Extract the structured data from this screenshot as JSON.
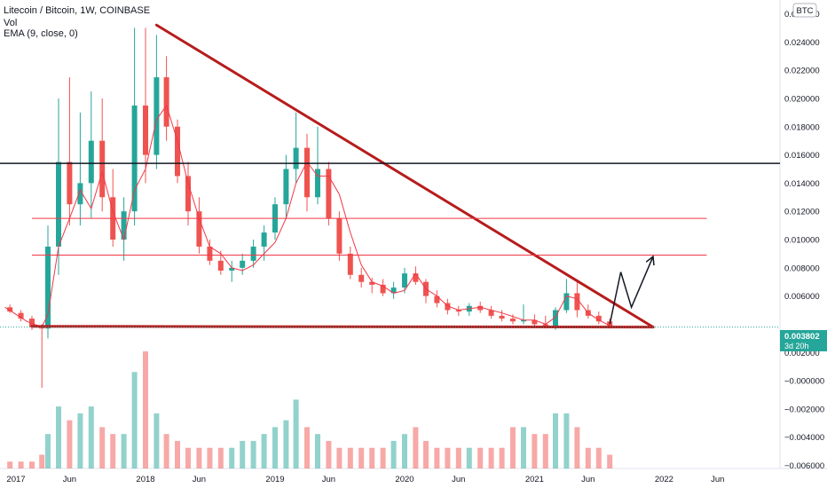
{
  "header": {
    "title": "Litecoin / Bitcoin, 1W, COINBASE",
    "vol_label": "Vol",
    "ema_label": "EMA (9, close, 0)",
    "currency_badge": "BTC"
  },
  "price_badge": {
    "value": "0.003802",
    "countdown": "3d 20h"
  },
  "colors": {
    "up": "#26a69a",
    "down": "#ef5350",
    "ema": "#f23645",
    "trendline": "#b71c1c",
    "resistance": "#131722",
    "level": "#f23645",
    "price_badge": "#26a69a",
    "arrow": "#131722"
  },
  "chart_data": {
    "type": "candlestick",
    "symbol": "Litecoin / Bitcoin",
    "interval": "1W",
    "exchange": "COINBASE",
    "x_ticks": [
      "2017",
      "Jun",
      "2018",
      "Jun",
      "2019",
      "Jun",
      "2020",
      "Jun",
      "2021",
      "Jun",
      "2022",
      "Jun"
    ],
    "x_tick_dates": [
      "2017-01-01",
      "2017-06-01",
      "2018-01-01",
      "2018-06-01",
      "2019-01-01",
      "2019-06-01",
      "2020-01-01",
      "2020-06-01",
      "2021-01-01",
      "2021-06-01",
      "2022-01-01",
      "2022-06-01"
    ],
    "y_ticks": [
      "0.026000",
      "0.024000",
      "0.022000",
      "0.020000",
      "0.018000",
      "0.016000",
      "0.014000",
      "0.012000",
      "0.010000",
      "0.008000",
      "0.006000",
      "0.002000",
      "−0.000000",
      "−0.002000",
      "−0.004000",
      "−0.006000"
    ],
    "y_tick_values": [
      0.026,
      0.024,
      0.022,
      0.02,
      0.018,
      0.016,
      0.014,
      0.012,
      0.01,
      0.008,
      0.006,
      0.002,
      0,
      -0.002,
      -0.004,
      -0.006
    ],
    "ylim": [
      -0.0063,
      0.0285
    ],
    "last_price": 0.003802,
    "series": [
      {
        "name": "EMA (9, close, 0)",
        "type": "line",
        "points": [
          [
            "2016-12-01",
            0.0052
          ],
          [
            "2017-02-01",
            0.0042
          ],
          [
            "2017-03-15",
            0.0038
          ],
          [
            "2017-04-01",
            0.0047
          ],
          [
            "2017-05-01",
            0.0095
          ],
          [
            "2017-06-01",
            0.0115
          ],
          [
            "2017-07-01",
            0.0135
          ],
          [
            "2017-08-01",
            0.0122
          ],
          [
            "2017-09-01",
            0.0148
          ],
          [
            "2017-10-01",
            0.012
          ],
          [
            "2017-11-01",
            0.01
          ],
          [
            "2017-12-01",
            0.0135
          ],
          [
            "2018-01-01",
            0.015
          ],
          [
            "2018-02-01",
            0.0185
          ],
          [
            "2018-03-01",
            0.0195
          ],
          [
            "2018-04-01",
            0.017
          ],
          [
            "2018-05-01",
            0.014
          ],
          [
            "2018-06-01",
            0.0115
          ],
          [
            "2018-07-01",
            0.0095
          ],
          [
            "2018-08-01",
            0.009
          ],
          [
            "2018-09-01",
            0.008
          ],
          [
            "2018-10-01",
            0.0078
          ],
          [
            "2018-11-01",
            0.0082
          ],
          [
            "2018-12-01",
            0.009
          ],
          [
            "2019-01-01",
            0.0098
          ],
          [
            "2019-02-01",
            0.0115
          ],
          [
            "2019-03-01",
            0.014
          ],
          [
            "2019-04-01",
            0.0155
          ],
          [
            "2019-05-01",
            0.0145
          ],
          [
            "2019-06-01",
            0.0145
          ],
          [
            "2019-07-01",
            0.0132
          ],
          [
            "2019-08-01",
            0.0105
          ],
          [
            "2019-09-01",
            0.0082
          ],
          [
            "2019-10-01",
            0.007
          ],
          [
            "2019-11-01",
            0.0067
          ],
          [
            "2019-12-01",
            0.0062
          ],
          [
            "2020-01-01",
            0.0064
          ],
          [
            "2020-02-01",
            0.0076
          ],
          [
            "2020-03-01",
            0.0065
          ],
          [
            "2020-04-01",
            0.006
          ],
          [
            "2020-05-01",
            0.0053
          ],
          [
            "2020-06-01",
            0.005
          ],
          [
            "2020-08-01",
            0.0052
          ],
          [
            "2020-10-01",
            0.0048
          ],
          [
            "2020-12-01",
            0.0043
          ],
          [
            "2021-01-01",
            0.0043
          ],
          [
            "2021-02-01",
            0.004
          ],
          [
            "2021-03-01",
            0.0045
          ],
          [
            "2021-04-01",
            0.006
          ],
          [
            "2021-05-01",
            0.0058
          ],
          [
            "2021-06-01",
            0.0048
          ],
          [
            "2021-07-01",
            0.0043
          ],
          [
            "2021-08-01",
            0.0039
          ]
        ]
      }
    ],
    "ohlc_shape": [
      [
        "2016-12-15",
        0.0052,
        0.0054,
        0.0048,
        0.0049
      ],
      [
        "2017-01-15",
        0.0048,
        0.005,
        0.0042,
        0.0044
      ],
      [
        "2017-02-15",
        0.0044,
        0.0046,
        0.0036,
        0.0038
      ],
      [
        "2017-03-15",
        0.0038,
        0.004,
        -0.0005,
        0.0037
      ],
      [
        "2017-04-01",
        0.0037,
        0.011,
        0.003,
        0.0095
      ],
      [
        "2017-05-01",
        0.0095,
        0.02,
        0.0075,
        0.0155
      ],
      [
        "2017-06-01",
        0.0155,
        0.0215,
        0.011,
        0.0125
      ],
      [
        "2017-07-01",
        0.0125,
        0.019,
        0.011,
        0.014
      ],
      [
        "2017-08-01",
        0.014,
        0.0205,
        0.0115,
        0.017
      ],
      [
        "2017-09-01",
        0.017,
        0.02,
        0.012,
        0.013
      ],
      [
        "2017-10-01",
        0.013,
        0.015,
        0.0095,
        0.01
      ],
      [
        "2017-11-01",
        0.01,
        0.013,
        0.0085,
        0.012
      ],
      [
        "2017-12-01",
        0.012,
        0.025,
        0.011,
        0.0195
      ],
      [
        "2018-01-01",
        0.0195,
        0.025,
        0.014,
        0.016
      ],
      [
        "2018-02-01",
        0.016,
        0.0245,
        0.015,
        0.0215
      ],
      [
        "2018-03-01",
        0.0215,
        0.023,
        0.017,
        0.018
      ],
      [
        "2018-04-01",
        0.018,
        0.0185,
        0.014,
        0.0145
      ],
      [
        "2018-05-01",
        0.0145,
        0.0155,
        0.011,
        0.012
      ],
      [
        "2018-06-01",
        0.012,
        0.013,
        0.009,
        0.0095
      ],
      [
        "2018-07-01",
        0.0095,
        0.01,
        0.0082,
        0.0085
      ],
      [
        "2018-08-01",
        0.0085,
        0.0092,
        0.0075,
        0.0078
      ],
      [
        "2018-09-01",
        0.0078,
        0.0085,
        0.007,
        0.008
      ],
      [
        "2018-10-01",
        0.008,
        0.009,
        0.0075,
        0.0085
      ],
      [
        "2018-11-01",
        0.0085,
        0.01,
        0.008,
        0.0095
      ],
      [
        "2018-12-01",
        0.0095,
        0.011,
        0.0085,
        0.0105
      ],
      [
        "2019-01-01",
        0.0105,
        0.013,
        0.01,
        0.0125
      ],
      [
        "2019-02-01",
        0.0125,
        0.016,
        0.0115,
        0.015
      ],
      [
        "2019-03-01",
        0.015,
        0.019,
        0.014,
        0.0165
      ],
      [
        "2019-04-01",
        0.0165,
        0.0175,
        0.012,
        0.013
      ],
      [
        "2019-05-01",
        0.013,
        0.018,
        0.0125,
        0.015
      ],
      [
        "2019-06-01",
        0.015,
        0.0155,
        0.011,
        0.0115
      ],
      [
        "2019-07-01",
        0.0115,
        0.012,
        0.0085,
        0.009
      ],
      [
        "2019-08-01",
        0.009,
        0.0095,
        0.0072,
        0.0075
      ],
      [
        "2019-09-01",
        0.0075,
        0.008,
        0.0066,
        0.007
      ],
      [
        "2019-10-01",
        0.007,
        0.0073,
        0.0062,
        0.0068
      ],
      [
        "2019-11-01",
        0.0068,
        0.0072,
        0.006,
        0.0062
      ],
      [
        "2019-12-01",
        0.0062,
        0.007,
        0.0058,
        0.0066
      ],
      [
        "2020-01-01",
        0.0066,
        0.008,
        0.0062,
        0.0076
      ],
      [
        "2020-02-01",
        0.0076,
        0.0081,
        0.0068,
        0.007
      ],
      [
        "2020-03-01",
        0.007,
        0.0072,
        0.0055,
        0.006
      ],
      [
        "2020-04-01",
        0.006,
        0.0064,
        0.0052,
        0.0055
      ],
      [
        "2020-05-01",
        0.0055,
        0.0058,
        0.0047,
        0.005
      ],
      [
        "2020-06-01",
        0.005,
        0.0053,
        0.0046,
        0.0049
      ],
      [
        "2020-07-01",
        0.0049,
        0.0055,
        0.0046,
        0.0053
      ],
      [
        "2020-08-01",
        0.0053,
        0.0056,
        0.0048,
        0.005
      ],
      [
        "2020-09-01",
        0.005,
        0.0053,
        0.0044,
        0.0046
      ],
      [
        "2020-10-01",
        0.0046,
        0.005,
        0.0042,
        0.0044
      ],
      [
        "2020-11-01",
        0.0044,
        0.0047,
        0.004,
        0.0042
      ],
      [
        "2020-12-01",
        0.0042,
        0.0054,
        0.004,
        0.0043
      ],
      [
        "2021-01-01",
        0.0043,
        0.0047,
        0.0038,
        0.004
      ],
      [
        "2021-02-01",
        0.004,
        0.0046,
        0.0037,
        0.0038
      ],
      [
        "2021-03-01",
        0.0038,
        0.0052,
        0.0036,
        0.005
      ],
      [
        "2021-04-01",
        0.005,
        0.0072,
        0.0048,
        0.0062
      ],
      [
        "2021-05-01",
        0.0062,
        0.007,
        0.0045,
        0.005
      ],
      [
        "2021-06-01",
        0.005,
        0.0054,
        0.0044,
        0.0046
      ],
      [
        "2021-07-01",
        0.0046,
        0.0049,
        0.004,
        0.0042
      ],
      [
        "2021-08-01",
        0.0042,
        0.0044,
        0.0037,
        0.0038
      ]
    ],
    "volume_shape": [
      1,
      1,
      1,
      2,
      5,
      9,
      7,
      8,
      9,
      6,
      5,
      5,
      14,
      17,
      8,
      5,
      4,
      3,
      3,
      3,
      3,
      3,
      4,
      4,
      5,
      6,
      7,
      10,
      6,
      5,
      4,
      3,
      3,
      3,
      3,
      3,
      4,
      5,
      6,
      4,
      3,
      3,
      3,
      3,
      3,
      3,
      3,
      6,
      6,
      5,
      5,
      8,
      8,
      6,
      3,
      3,
      2
    ],
    "annotations": [
      {
        "type": "trendline",
        "name": "descending-resistance",
        "points": [
          [
            "2018-02-01",
            0.0252
          ],
          [
            "2021-12-01",
            0.0038
          ]
        ],
        "color": "#b71c1c"
      },
      {
        "type": "trendline",
        "name": "support",
        "points": [
          [
            "2017-02-15",
            0.00385
          ],
          [
            "2021-12-01",
            0.0038
          ]
        ],
        "color": "#b71c1c"
      },
      {
        "type": "hline",
        "name": "resistance-level",
        "y": 0.0154,
        "color": "#131722"
      },
      {
        "type": "hline",
        "name": "level-1",
        "y": 0.0115,
        "from": "2017-02-15",
        "to": "2022-05-01",
        "color": "#f23645"
      },
      {
        "type": "hline",
        "name": "level-2",
        "y": 0.0089,
        "from": "2017-02-15",
        "to": "2022-05-01",
        "color": "#f23645"
      },
      {
        "type": "arrow",
        "name": "projected-path",
        "points": [
          [
            "2021-08-01",
            0.004
          ],
          [
            "2021-09-01",
            0.0077
          ],
          [
            "2021-10-01",
            0.0052
          ],
          [
            "2021-12-01",
            0.0088
          ]
        ],
        "color": "#131722"
      }
    ]
  }
}
